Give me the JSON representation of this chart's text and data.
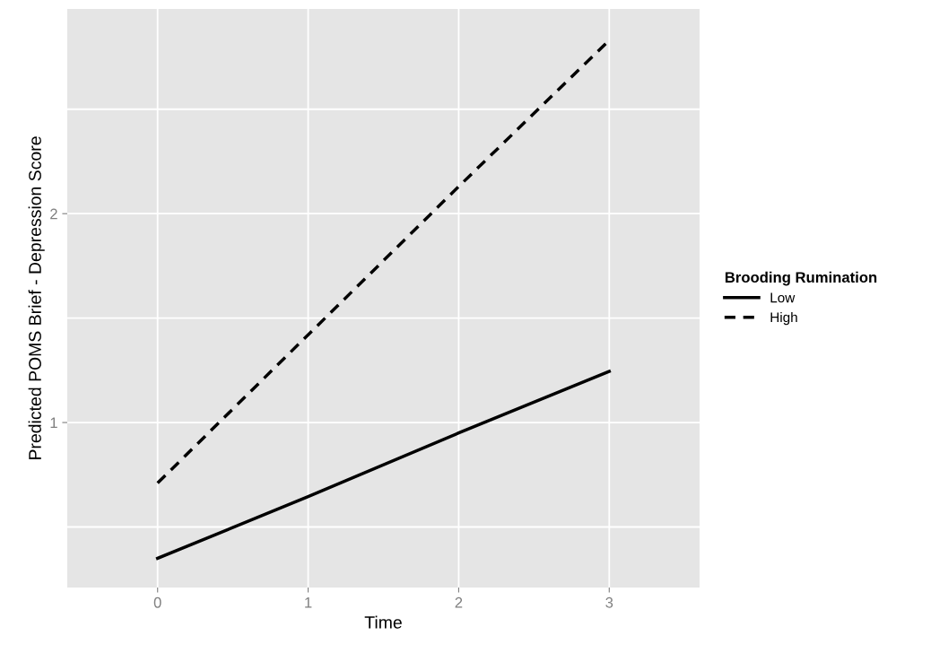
{
  "chart_data": {
    "type": "line",
    "xlabel": "Time",
    "ylabel": "Predicted POMS Brief - Depression Score",
    "legend_title": "Brooding Rumination",
    "x": [
      0,
      1,
      2,
      3
    ],
    "series": [
      {
        "name": "Low",
        "color": "#000000",
        "values": [
          0.35,
          0.645,
          0.95,
          1.245
        ],
        "line_style": "solid"
      },
      {
        "name": "High",
        "color": "#000000",
        "values": [
          0.71,
          1.42,
          2.13,
          2.83
        ],
        "line_style": "dashed"
      }
    ],
    "xlim": [
      -0.6,
      3.6
    ],
    "xticks": [
      0,
      1,
      2,
      3
    ],
    "ylim": [
      0.21,
      2.98
    ],
    "yticks": [
      {
        "value": 0.5,
        "label": null
      },
      1,
      {
        "value": 1.5,
        "label": null
      },
      2,
      {
        "value": 2.5,
        "label": null
      }
    ],
    "grid": true,
    "legend": "right",
    "marker": "none"
  }
}
